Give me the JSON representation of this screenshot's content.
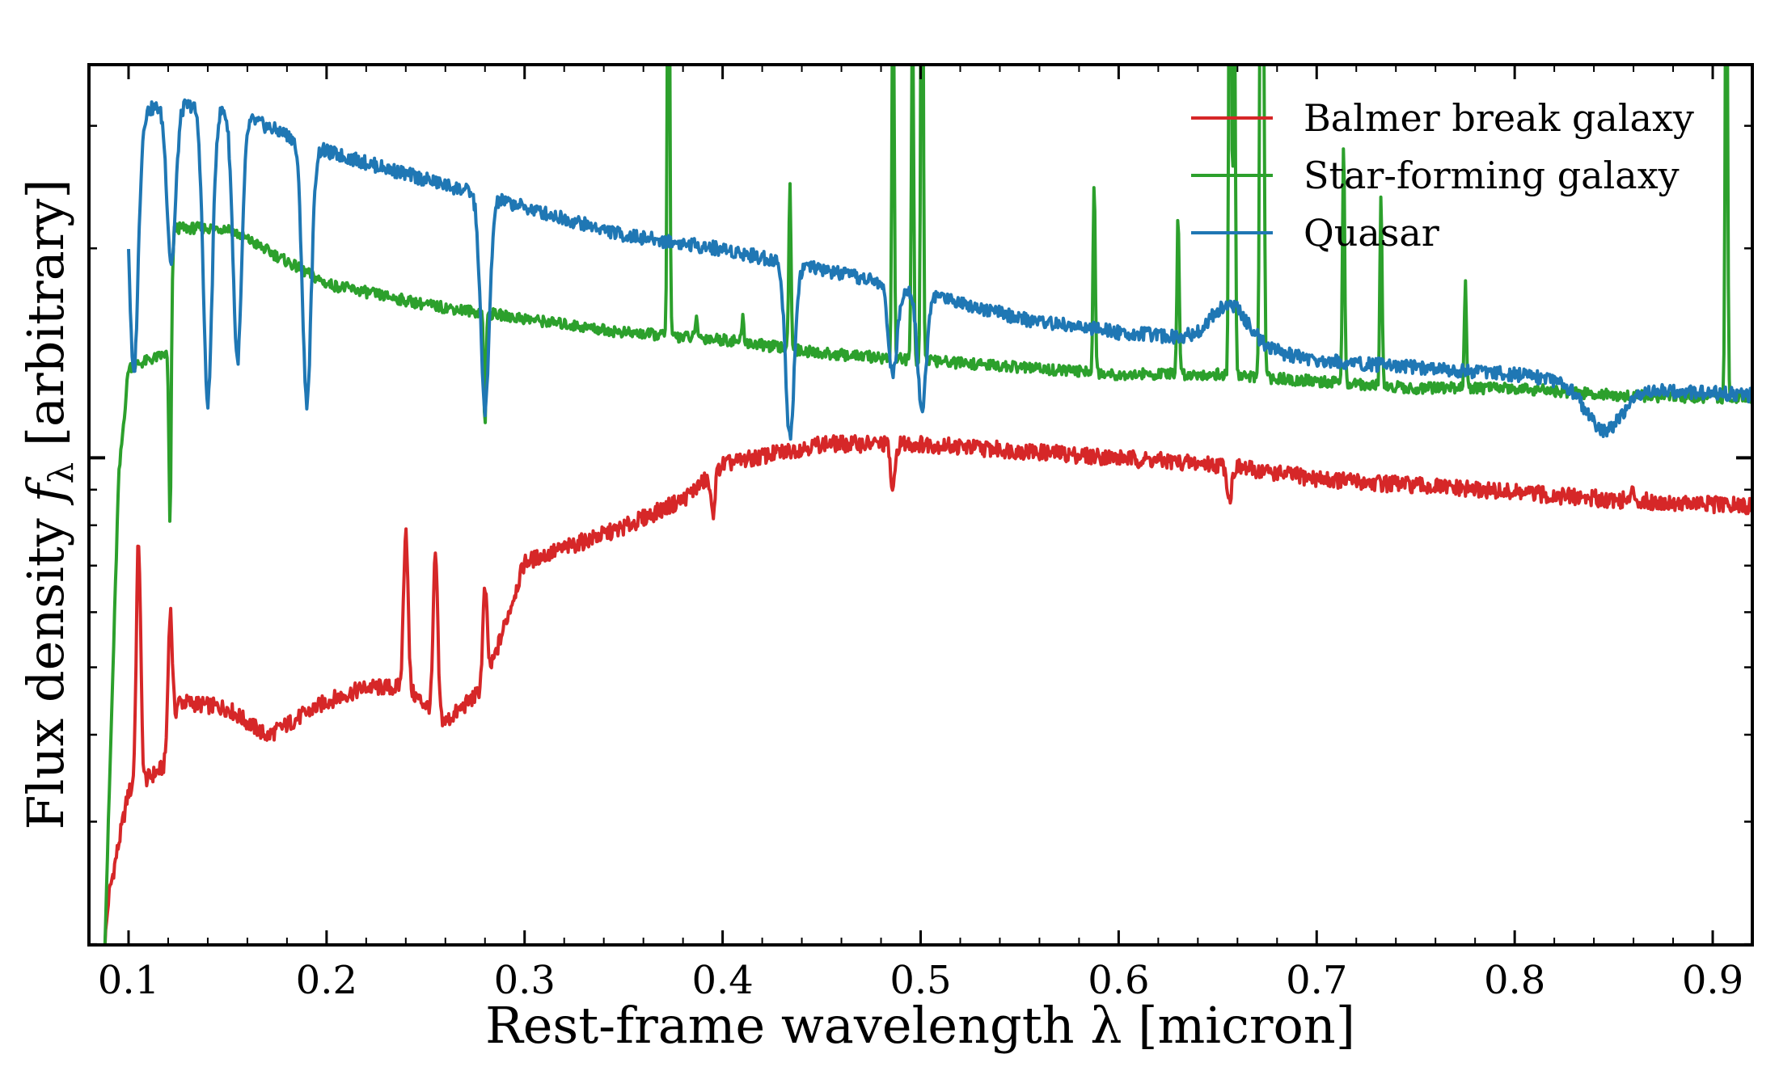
{
  "chart_data": {
    "type": "line",
    "title": "",
    "xlabel": "Rest-frame wavelength λ [micron]",
    "ylabel": "Flux density f_λ [arbitrary]",
    "xlim": [
      0.08,
      0.92
    ],
    "ylim_log10": [
      -0.7,
      0.565
    ],
    "y_scale": "log",
    "y_tick_labels": "none",
    "x_ticks": [
      0.1,
      0.2,
      0.3,
      0.4,
      0.5,
      0.6,
      0.7,
      0.8,
      0.9
    ],
    "x_tick_labels": [
      "0.1",
      "0.2",
      "0.3",
      "0.4",
      "0.5",
      "0.6",
      "0.7",
      "0.8",
      "0.9"
    ],
    "grid": false,
    "legend_position": "top-right",
    "series": [
      {
        "name": "Balmer break galaxy",
        "color": "#d62728",
        "continuum": [
          [
            0.088,
            -0.7
          ],
          [
            0.09,
            -0.63
          ],
          [
            0.1,
            -0.48
          ],
          [
            0.12,
            -0.44
          ],
          [
            0.125,
            -0.35
          ],
          [
            0.15,
            -0.36
          ],
          [
            0.17,
            -0.4
          ],
          [
            0.2,
            -0.35
          ],
          [
            0.22,
            -0.33
          ],
          [
            0.24,
            -0.33
          ],
          [
            0.26,
            -0.38
          ],
          [
            0.28,
            -0.33
          ],
          [
            0.3,
            -0.15
          ],
          [
            0.35,
            -0.1
          ],
          [
            0.38,
            -0.06
          ],
          [
            0.4,
            -0.01
          ],
          [
            0.45,
            0.02
          ],
          [
            0.5,
            0.02
          ],
          [
            0.55,
            0.01
          ],
          [
            0.6,
            0.0
          ],
          [
            0.65,
            -0.01
          ],
          [
            0.7,
            -0.03
          ],
          [
            0.75,
            -0.04
          ],
          [
            0.8,
            -0.05
          ],
          [
            0.85,
            -0.06
          ],
          [
            0.92,
            -0.07
          ]
        ],
        "features": [
          [
            0.105,
            -0.12
          ],
          [
            0.121,
            -0.22
          ],
          [
            0.24,
            -0.1
          ],
          [
            0.255,
            -0.14
          ],
          [
            0.28,
            -0.19
          ],
          [
            0.38,
            -0.06
          ],
          [
            0.395,
            -0.08
          ],
          [
            0.486,
            -0.05
          ],
          [
            0.656,
            -0.06
          ],
          [
            0.86,
            -0.05
          ]
        ]
      },
      {
        "name": "Star-forming galaxy",
        "color": "#2ca02c",
        "continuum": [
          [
            0.088,
            -0.7
          ],
          [
            0.095,
            -0.03
          ],
          [
            0.1,
            0.13
          ],
          [
            0.12,
            0.15
          ],
          [
            0.123,
            0.33
          ],
          [
            0.15,
            0.33
          ],
          [
            0.2,
            0.25
          ],
          [
            0.25,
            0.22
          ],
          [
            0.3,
            0.2
          ],
          [
            0.35,
            0.18
          ],
          [
            0.4,
            0.17
          ],
          [
            0.45,
            0.15
          ],
          [
            0.5,
            0.14
          ],
          [
            0.55,
            0.13
          ],
          [
            0.6,
            0.12
          ],
          [
            0.65,
            0.12
          ],
          [
            0.7,
            0.11
          ],
          [
            0.75,
            0.1
          ],
          [
            0.8,
            0.1
          ],
          [
            0.85,
            0.09
          ],
          [
            0.92,
            0.085
          ]
        ],
        "emission_lines": [
          [
            0.121,
            -0.1
          ],
          [
            0.28,
            0.05
          ],
          [
            0.3727,
            1.0
          ],
          [
            0.3869,
            0.2
          ],
          [
            0.4102,
            0.2
          ],
          [
            0.434,
            0.4
          ],
          [
            0.4861,
            0.75
          ],
          [
            0.4959,
            0.65
          ],
          [
            0.5007,
            1.1
          ],
          [
            0.5876,
            0.4
          ],
          [
            0.63,
            0.35
          ],
          [
            0.6563,
            1.3
          ],
          [
            0.6584,
            0.7
          ],
          [
            0.6717,
            0.8
          ],
          [
            0.6731,
            0.65
          ],
          [
            0.7136,
            0.45
          ],
          [
            0.7325,
            0.38
          ],
          [
            0.7751,
            0.25
          ],
          [
            0.9069,
            0.9
          ]
        ]
      },
      {
        "name": "Quasar",
        "color": "#1f77b4",
        "continuum": [
          [
            0.1,
            0.49
          ],
          [
            0.12,
            0.51
          ],
          [
            0.15,
            0.5
          ],
          [
            0.2,
            0.44
          ],
          [
            0.25,
            0.4
          ],
          [
            0.3,
            0.36
          ],
          [
            0.35,
            0.32
          ],
          [
            0.4,
            0.3
          ],
          [
            0.45,
            0.27
          ],
          [
            0.5,
            0.24
          ],
          [
            0.55,
            0.2
          ],
          [
            0.6,
            0.18
          ],
          [
            0.65,
            0.17
          ],
          [
            0.7,
            0.14
          ],
          [
            0.75,
            0.13
          ],
          [
            0.8,
            0.12
          ],
          [
            0.85,
            0.1
          ],
          [
            0.92,
            0.09
          ]
        ],
        "emission_lines": [
          [
            0.1026,
            0.12
          ],
          [
            0.1216,
            0.28
          ],
          [
            0.14,
            0.08
          ],
          [
            0.155,
            0.14
          ],
          [
            0.19,
            0.08
          ],
          [
            0.28,
            0.07
          ],
          [
            0.434,
            0.03
          ],
          [
            0.486,
            0.12
          ],
          [
            0.5007,
            0.07
          ],
          [
            0.6563,
            0.22
          ],
          [
            0.845,
            0.04
          ]
        ]
      }
    ]
  }
}
